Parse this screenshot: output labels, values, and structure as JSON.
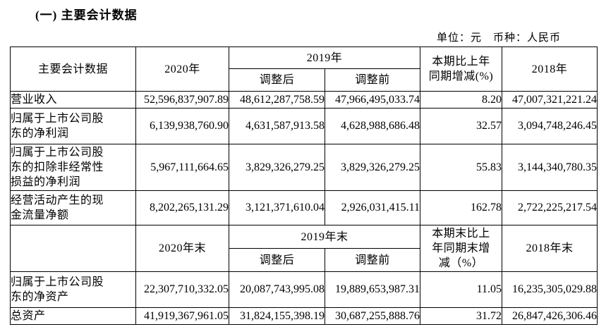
{
  "title": "(一) 主要会计数据",
  "unit_note": "单位：元　币种：人民币",
  "colors": {
    "text": "#000000",
    "border": "#000000",
    "background": "#ffffff"
  },
  "table": {
    "header_top": {
      "label_lines": [
        "主要会计数据"
      ],
      "y2020": "2020年",
      "y2019": "2019年",
      "adjusted_after": "调整后",
      "adjusted_before": "调整前",
      "change_lines": [
        "本期比上年",
        "同期增减(%)"
      ],
      "y2018": "2018年"
    },
    "rows_period": [
      {
        "label_lines": [
          "营业收入"
        ],
        "v2020": "52,596,837,907.89",
        "v2019_after": "48,612,287,758.59",
        "v2019_before": "47,966,495,033.74",
        "change": "8.20",
        "v2018": "47,007,321,221.24"
      },
      {
        "label_lines": [
          "归属于上市公司股",
          "东的净利润"
        ],
        "v2020": "6,139,938,760.90",
        "v2019_after": "4,631,587,913.58",
        "v2019_before": "4,628,988,686.48",
        "change": "32.57",
        "v2018": "3,094,748,246.45"
      },
      {
        "label_lines": [
          "归属于上市公司股",
          "东的扣除非经常性",
          "损益的净利润"
        ],
        "v2020": "5,967,111,664.65",
        "v2019_after": "3,829,326,279.25",
        "v2019_before": "3,829,326,279.25",
        "change": "55.83",
        "v2018": "3,144,340,780.35"
      },
      {
        "label_lines": [
          "经营活动产生的现",
          "金流量净额"
        ],
        "v2020": "8,202,265,131.29",
        "v2019_after": "3,121,371,610.04",
        "v2019_before": "2,926,031,415.11",
        "change": "162.78",
        "v2018": "2,722,225,217.54"
      }
    ],
    "header_end": {
      "label_lines": [
        ""
      ],
      "y2020": "2020年末",
      "y2019": "2019年末",
      "adjusted_after": "调整后",
      "adjusted_before": "调整前",
      "change_lines": [
        "本期末比上",
        "年同期末增",
        "减（%）"
      ],
      "y2018": "2018年末"
    },
    "rows_end": [
      {
        "label_lines": [
          "归属于上市公司股",
          "东的净资产"
        ],
        "v2020": "22,307,710,332.05",
        "v2019_after": "20,087,743,995.08",
        "v2019_before": "19,889,653,987.31",
        "change": "11.05",
        "v2018": "16,235,305,029.88"
      },
      {
        "label_lines": [
          "总资产"
        ],
        "v2020": "41,919,367,961.05",
        "v2019_after": "31,824,155,398.19",
        "v2019_before": "30,687,255,888.76",
        "change": "31.72",
        "v2018": "26,847,426,306.46"
      }
    ]
  }
}
